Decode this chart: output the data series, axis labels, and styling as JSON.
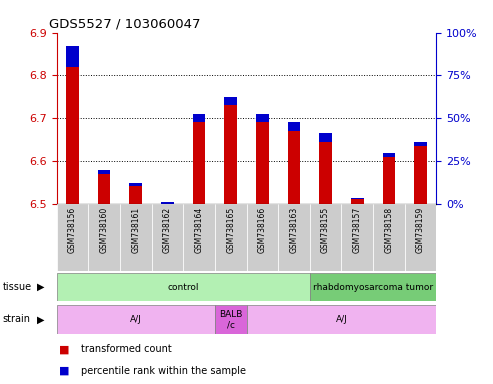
{
  "title": "GDS5527 / 103060047",
  "samples": [
    "GSM738156",
    "GSM738160",
    "GSM738161",
    "GSM738162",
    "GSM738164",
    "GSM738165",
    "GSM738166",
    "GSM738163",
    "GSM738155",
    "GSM738157",
    "GSM738158",
    "GSM738159"
  ],
  "transformed_counts": [
    6.82,
    6.57,
    6.54,
    6.5,
    6.69,
    6.73,
    6.69,
    6.67,
    6.645,
    6.51,
    6.61,
    6.635
  ],
  "percentile_ranks": [
    12,
    2,
    2,
    1,
    5,
    5,
    5,
    5,
    5,
    1,
    2,
    2
  ],
  "ylim_left": [
    6.5,
    6.9
  ],
  "ylim_right": [
    0,
    100
  ],
  "yticks_left": [
    6.5,
    6.6,
    6.7,
    6.8,
    6.9
  ],
  "yticks_right": [
    0,
    25,
    50,
    75,
    100
  ],
  "left_tick_color": "#cc0000",
  "right_tick_color": "#0000cc",
  "red_color": "#cc0000",
  "blue_color": "#0000cc",
  "bar_baseline": 6.5,
  "bar_width": 0.4,
  "tissue_groups": [
    {
      "label": "control",
      "start": 0,
      "end": 8,
      "color": "#b3f0b3"
    },
    {
      "label": "rhabdomyosarcoma tumor",
      "start": 8,
      "end": 12,
      "color": "#77cc77"
    }
  ],
  "strain_groups": [
    {
      "label": "A/J",
      "start": 0,
      "end": 5,
      "color": "#f0b3f0"
    },
    {
      "label": "BALB\n/c",
      "start": 5,
      "end": 6,
      "color": "#d966d9"
    },
    {
      "label": "A/J",
      "start": 6,
      "end": 12,
      "color": "#f0b3f0"
    }
  ],
  "legend_items": [
    {
      "color": "#cc0000",
      "label": "transformed count"
    },
    {
      "color": "#0000cc",
      "label": "percentile rank within the sample"
    }
  ],
  "label_box_color": "#cccccc",
  "plot_bg_color": "#ffffff"
}
